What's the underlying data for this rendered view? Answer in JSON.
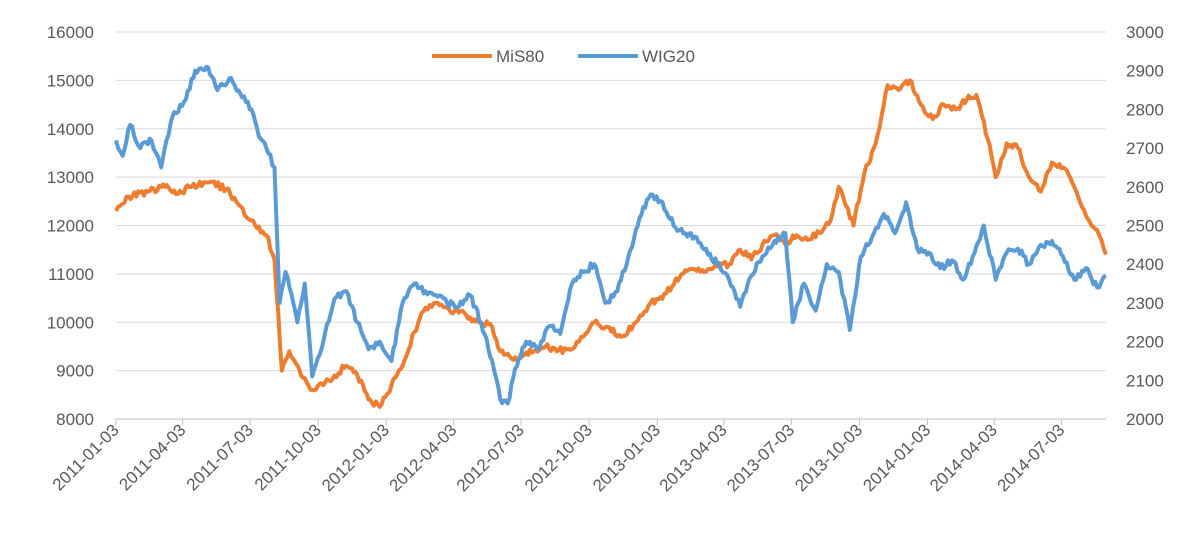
{
  "chart_data": {
    "type": "line",
    "title": "",
    "xlabel": "",
    "ylabel": "",
    "y_left_lim": [
      8000,
      16000
    ],
    "y_right_lim": [
      2000,
      3000
    ],
    "y_left_ticks": [
      "8000",
      "9000",
      "10000",
      "11000",
      "12000",
      "13000",
      "14000",
      "15000",
      "16000"
    ],
    "y_right_ticks": [
      "2000",
      "2100",
      "2200",
      "2300",
      "2400",
      "2500",
      "2600",
      "2700",
      "2800",
      "2900",
      "3000"
    ],
    "x_ticks": [
      "2011-01-03",
      "2011-04-03",
      "2011-07-03",
      "2011-10-03",
      "2012-01-03",
      "2012-04-03",
      "2012-07-03",
      "2012-10-03",
      "2013-01-03",
      "2013-04-03",
      "2013-07-03",
      "2013-10-03",
      "2014-01-03",
      "2014-04-03",
      "2014-07-03"
    ],
    "grid": true,
    "legend_position": "top-center",
    "series": [
      {
        "name": "MiS80",
        "axis": "left",
        "color": "#ED7D31",
        "points": [
          [
            "2011-01-03",
            12300
          ],
          [
            "2011-01-20",
            12600
          ],
          [
            "2011-02-15",
            12700
          ],
          [
            "2011-03-10",
            12800
          ],
          [
            "2011-03-25",
            12650
          ],
          [
            "2011-04-15",
            12800
          ],
          [
            "2011-05-10",
            12900
          ],
          [
            "2011-06-01",
            12750
          ],
          [
            "2011-06-20",
            12400
          ],
          [
            "2011-07-10",
            12000
          ],
          [
            "2011-07-25",
            11800
          ],
          [
            "2011-08-05",
            11300
          ],
          [
            "2011-08-15",
            9000
          ],
          [
            "2011-08-25",
            9400
          ],
          [
            "2011-09-10",
            8900
          ],
          [
            "2011-09-25",
            8600
          ],
          [
            "2011-10-10",
            8700
          ],
          [
            "2011-10-25",
            8900
          ],
          [
            "2011-11-10",
            9100
          ],
          [
            "2011-11-25",
            8900
          ],
          [
            "2011-12-10",
            8400
          ],
          [
            "2011-12-25",
            8250
          ],
          [
            "2012-01-10",
            8700
          ],
          [
            "2012-01-25",
            9100
          ],
          [
            "2012-02-10",
            9800
          ],
          [
            "2012-02-25",
            10300
          ],
          [
            "2012-03-10",
            10400
          ],
          [
            "2012-03-25",
            10300
          ],
          [
            "2012-04-10",
            10200
          ],
          [
            "2012-04-25",
            10100
          ],
          [
            "2012-05-10",
            10000
          ],
          [
            "2012-05-25",
            9900
          ],
          [
            "2012-06-05",
            9400
          ],
          [
            "2012-06-20",
            9250
          ],
          [
            "2012-07-05",
            9300
          ],
          [
            "2012-07-20",
            9400
          ],
          [
            "2012-08-05",
            9500
          ],
          [
            "2012-08-20",
            9400
          ],
          [
            "2012-09-05",
            9450
          ],
          [
            "2012-09-25",
            9700
          ],
          [
            "2012-10-10",
            10000
          ],
          [
            "2012-10-25",
            9900
          ],
          [
            "2012-11-15",
            9700
          ],
          [
            "2012-12-05",
            10000
          ],
          [
            "2012-12-25",
            10400
          ],
          [
            "2013-01-15",
            10600
          ],
          [
            "2013-02-05",
            11000
          ],
          [
            "2013-02-20",
            11100
          ],
          [
            "2013-03-10",
            11050
          ],
          [
            "2013-03-25",
            11150
          ],
          [
            "2013-04-10",
            11200
          ],
          [
            "2013-04-25",
            11500
          ],
          [
            "2013-05-10",
            11300
          ],
          [
            "2013-05-25",
            11600
          ],
          [
            "2013-06-10",
            11800
          ],
          [
            "2013-06-25",
            11600
          ],
          [
            "2013-07-10",
            11800
          ],
          [
            "2013-07-25",
            11700
          ],
          [
            "2013-08-10",
            11850
          ],
          [
            "2013-08-25",
            12100
          ],
          [
            "2013-09-05",
            12800
          ],
          [
            "2013-09-15",
            12400
          ],
          [
            "2013-09-25",
            12000
          ],
          [
            "2013-10-10",
            13100
          ],
          [
            "2013-10-25",
            13700
          ],
          [
            "2013-11-10",
            14900
          ],
          [
            "2013-11-25",
            14800
          ],
          [
            "2013-12-10",
            15000
          ],
          [
            "2013-12-25",
            14500
          ],
          [
            "2014-01-10",
            14200
          ],
          [
            "2014-01-25",
            14500
          ],
          [
            "2014-02-10",
            14400
          ],
          [
            "2014-02-25",
            14600
          ],
          [
            "2014-03-10",
            14700
          ],
          [
            "2014-03-25",
            13800
          ],
          [
            "2014-04-05",
            13000
          ],
          [
            "2014-04-20",
            13700
          ],
          [
            "2014-05-05",
            13600
          ],
          [
            "2014-05-20",
            13000
          ],
          [
            "2014-06-05",
            12700
          ],
          [
            "2014-06-20",
            13300
          ],
          [
            "2014-07-05",
            13200
          ],
          [
            "2014-07-20",
            12800
          ],
          [
            "2014-08-05",
            12200
          ],
          [
            "2014-08-20",
            11900
          ],
          [
            "2014-09-01",
            11400
          ]
        ]
      },
      {
        "name": "WIG20",
        "axis": "right",
        "color": "#5B9BD5",
        "points": [
          [
            "2011-01-03",
            2720
          ],
          [
            "2011-01-12",
            2680
          ],
          [
            "2011-01-22",
            2760
          ],
          [
            "2011-02-05",
            2700
          ],
          [
            "2011-02-20",
            2720
          ],
          [
            "2011-03-05",
            2650
          ],
          [
            "2011-03-20",
            2780
          ],
          [
            "2011-04-05",
            2820
          ],
          [
            "2011-04-20",
            2900
          ],
          [
            "2011-05-05",
            2910
          ],
          [
            "2011-05-20",
            2850
          ],
          [
            "2011-06-05",
            2880
          ],
          [
            "2011-06-20",
            2840
          ],
          [
            "2011-07-05",
            2800
          ],
          [
            "2011-07-15",
            2730
          ],
          [
            "2011-07-25",
            2700
          ],
          [
            "2011-08-05",
            2650
          ],
          [
            "2011-08-12",
            2300
          ],
          [
            "2011-08-20",
            2380
          ],
          [
            "2011-09-05",
            2250
          ],
          [
            "2011-09-15",
            2350
          ],
          [
            "2011-09-25",
            2110
          ],
          [
            "2011-10-10",
            2200
          ],
          [
            "2011-10-25",
            2310
          ],
          [
            "2011-11-10",
            2330
          ],
          [
            "2011-11-25",
            2250
          ],
          [
            "2011-12-10",
            2180
          ],
          [
            "2011-12-25",
            2200
          ],
          [
            "2012-01-10",
            2150
          ],
          [
            "2012-01-25",
            2300
          ],
          [
            "2012-02-10",
            2350
          ],
          [
            "2012-02-25",
            2330
          ],
          [
            "2012-03-10",
            2320
          ],
          [
            "2012-03-25",
            2300
          ],
          [
            "2012-04-10",
            2290
          ],
          [
            "2012-04-25",
            2320
          ],
          [
            "2012-05-10",
            2250
          ],
          [
            "2012-05-25",
            2150
          ],
          [
            "2012-06-05",
            2050
          ],
          [
            "2012-06-15",
            2040
          ],
          [
            "2012-06-25",
            2130
          ],
          [
            "2012-07-10",
            2200
          ],
          [
            "2012-07-25",
            2180
          ],
          [
            "2012-08-10",
            2240
          ],
          [
            "2012-08-25",
            2220
          ],
          [
            "2012-09-10",
            2350
          ],
          [
            "2012-09-25",
            2380
          ],
          [
            "2012-10-10",
            2400
          ],
          [
            "2012-10-25",
            2300
          ],
          [
            "2012-11-10",
            2330
          ],
          [
            "2012-11-25",
            2420
          ],
          [
            "2012-12-10",
            2520
          ],
          [
            "2012-12-25",
            2580
          ],
          [
            "2013-01-10",
            2560
          ],
          [
            "2013-01-25",
            2500
          ],
          [
            "2013-02-10",
            2480
          ],
          [
            "2013-02-25",
            2470
          ],
          [
            "2013-03-10",
            2440
          ],
          [
            "2013-03-25",
            2400
          ],
          [
            "2013-04-10",
            2360
          ],
          [
            "2013-04-25",
            2290
          ],
          [
            "2013-05-10",
            2370
          ],
          [
            "2013-05-25",
            2420
          ],
          [
            "2013-06-10",
            2460
          ],
          [
            "2013-06-25",
            2480
          ],
          [
            "2013-07-05",
            2250
          ],
          [
            "2013-07-20",
            2350
          ],
          [
            "2013-08-05",
            2280
          ],
          [
            "2013-08-20",
            2400
          ],
          [
            "2013-09-05",
            2380
          ],
          [
            "2013-09-20",
            2230
          ],
          [
            "2013-10-05",
            2420
          ],
          [
            "2013-10-20",
            2470
          ],
          [
            "2013-11-05",
            2530
          ],
          [
            "2013-11-20",
            2480
          ],
          [
            "2013-12-05",
            2560
          ],
          [
            "2013-12-20",
            2440
          ],
          [
            "2014-01-05",
            2430
          ],
          [
            "2014-01-20",
            2390
          ],
          [
            "2014-02-05",
            2410
          ],
          [
            "2014-02-20",
            2360
          ],
          [
            "2014-03-05",
            2420
          ],
          [
            "2014-03-20",
            2500
          ],
          [
            "2014-04-05",
            2360
          ],
          [
            "2014-04-20",
            2430
          ],
          [
            "2014-05-05",
            2440
          ],
          [
            "2014-05-20",
            2400
          ],
          [
            "2014-06-05",
            2450
          ],
          [
            "2014-06-20",
            2460
          ],
          [
            "2014-07-05",
            2420
          ],
          [
            "2014-07-20",
            2360
          ],
          [
            "2014-08-05",
            2390
          ],
          [
            "2014-08-20",
            2340
          ],
          [
            "2014-09-01",
            2370
          ]
        ]
      }
    ]
  }
}
